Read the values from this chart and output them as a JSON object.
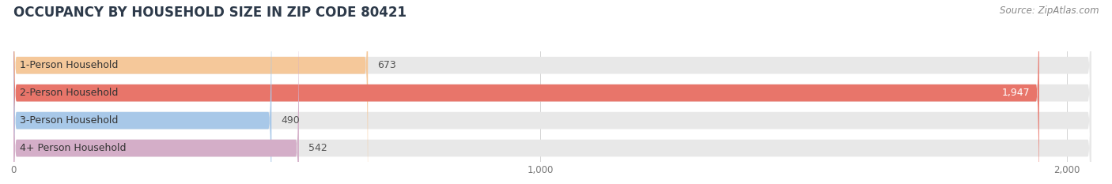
{
  "title": "OCCUPANCY BY HOUSEHOLD SIZE IN ZIP CODE 80421",
  "source": "Source: ZipAtlas.com",
  "categories": [
    "1-Person Household",
    "2-Person Household",
    "3-Person Household",
    "4+ Person Household"
  ],
  "values": [
    673,
    1947,
    490,
    542
  ],
  "bar_colors": [
    "#f5c89a",
    "#e8756a",
    "#a8c8e8",
    "#d4aec8"
  ],
  "bar_bg_color": "#e8e8e8",
  "label_colors": [
    "#555555",
    "#ffffff",
    "#555555",
    "#555555"
  ],
  "xlim": [
    0,
    2060
  ],
  "xticks": [
    0,
    1000,
    2000
  ],
  "xtick_labels": [
    "0",
    "1,000",
    "2,000"
  ],
  "title_fontsize": 12,
  "source_fontsize": 8.5,
  "bar_label_fontsize": 9,
  "category_fontsize": 9,
  "background_color": "#ffffff",
  "bar_height": 0.62,
  "figure_width": 14.06,
  "figure_height": 2.33
}
